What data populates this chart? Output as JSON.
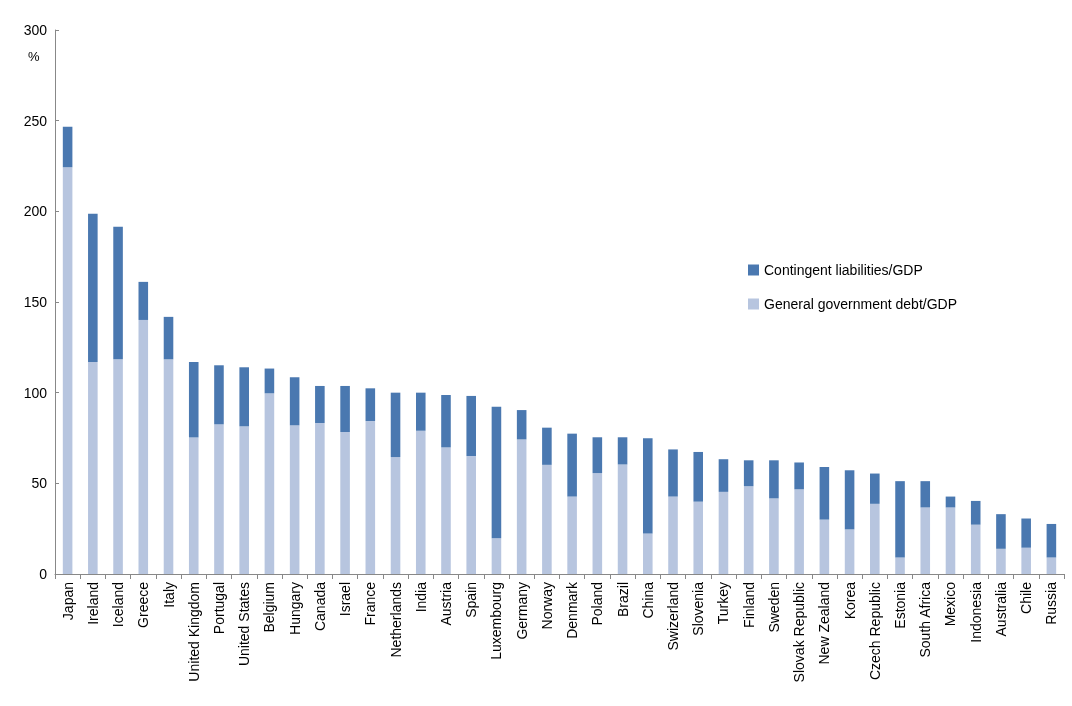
{
  "chart_data": {
    "type": "bar",
    "stacked": true,
    "ylabel": "%",
    "categories": [
      "Japan",
      "Ireland",
      "Iceland",
      "Greece",
      "Italy",
      "United Kingdom",
      "Portugal",
      "United States",
      "Belgium",
      "Hungary",
      "Canada",
      "Israel",
      "France",
      "Netherlands",
      "India",
      "Austria",
      "Spain",
      "Luxembourg",
      "Germany",
      "Norway",
      "Denmark",
      "Poland",
      "Brazil",
      "China",
      "Swizerland",
      "Slovenia",
      "Turkey",
      "Finland",
      "Sweden",
      "Slovak Republic",
      "New Zealand",
      "Korea",
      "Czech Republic",
      "Estonia",
      "South Africa",
      "Mexico",
      "Indonesia",
      "Australia",
      "Chile",
      "Russia"
    ],
    "series": [
      {
        "name": "General government debt/GDP",
        "color": "#b7c5df",
        "values": [
          224.3,
          116.9,
          118.4,
          140.1,
          118.4,
          75.3,
          82.5,
          81.4,
          99.6,
          82.0,
          83.2,
          78.3,
          84.3,
          64.5,
          79.0,
          69.8,
          65.0,
          19.7,
          74.2,
          60.2,
          42.7,
          55.6,
          60.4,
          22.4,
          42.7,
          39.9,
          45.3,
          48.4,
          41.7,
          46.7,
          30.0,
          24.6,
          38.7,
          9.1,
          36.7,
          36.7,
          27.2,
          13.9,
          14.5,
          9.1
        ]
      },
      {
        "name": "Contingent liabilities/GDP",
        "color": "#4a78b0",
        "values": [
          22.3,
          81.8,
          73.1,
          21.0,
          23.4,
          41.6,
          32.6,
          32.6,
          13.7,
          26.5,
          20.5,
          25.4,
          18.1,
          35.5,
          21.0,
          28.9,
          33.2,
          72.6,
          16.2,
          20.5,
          34.7,
          19.8,
          15.0,
          52.4,
          26.0,
          27.4,
          18.0,
          14.3,
          21.0,
          14.8,
          29.0,
          32.6,
          16.7,
          42.1,
          14.5,
          6.0,
          13.1,
          19.1,
          16.1,
          18.5
        ]
      }
    ],
    "ylim": [
      0,
      300
    ],
    "yticks": [
      0,
      50,
      100,
      150,
      200,
      250,
      300
    ],
    "legend": "right"
  }
}
